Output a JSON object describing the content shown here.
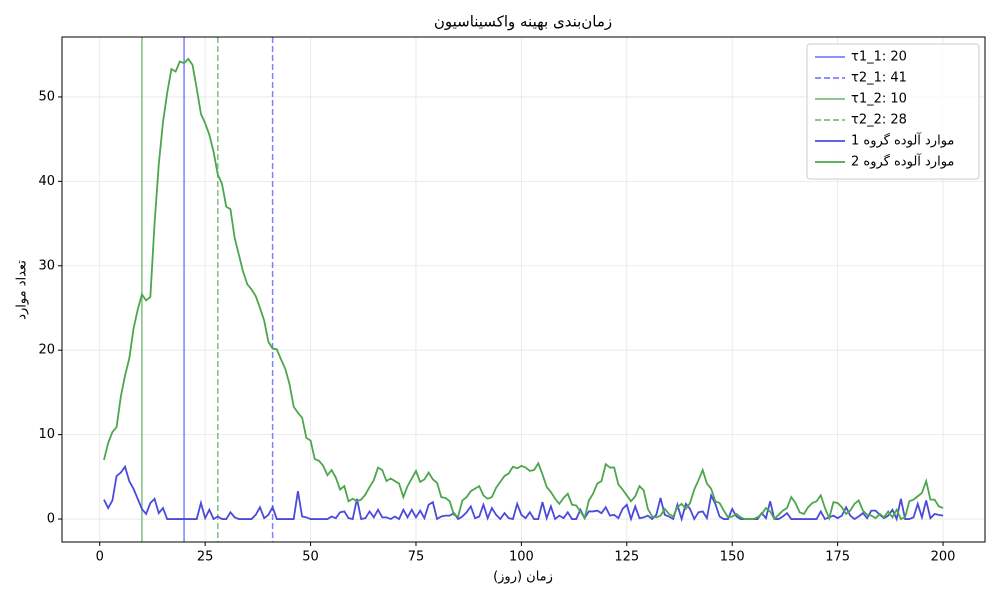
{
  "chart_data": {
    "type": "line",
    "title": "زمان‌بندی بهینه واکسیناسیون",
    "x_label": "زمان (روز)",
    "y_label": "تعداد موارد",
    "xlim": [
      -8.95,
      209.95
    ],
    "ylim": [
      -2.72,
      57.1
    ],
    "xticks": [
      0,
      25,
      50,
      75,
      100,
      125,
      150,
      175,
      200
    ],
    "yticks": [
      0,
      10,
      20,
      30,
      40,
      50
    ],
    "grid": true,
    "legend": "upper right",
    "vlines": [
      {
        "name": "τ1_1: 20",
        "value": 20,
        "color": "#7f7fff",
        "dashed": false
      },
      {
        "name": "τ2_1: 41",
        "value": 41,
        "color": "#7f7fff",
        "dashed": true
      },
      {
        "name": "τ1_2: 10",
        "value": 10,
        "color": "#7fbf7f",
        "dashed": false
      },
      {
        "name": "τ2_2: 28",
        "value": 28,
        "color": "#7fbf7f",
        "dashed": true
      }
    ],
    "x": [
      1,
      2,
      3,
      4,
      5,
      6,
      7,
      8,
      9,
      10,
      11,
      12,
      13,
      14,
      15,
      16,
      17,
      18,
      19,
      20,
      21,
      22,
      23,
      24,
      25,
      26,
      27,
      28,
      29,
      30,
      31,
      32,
      33,
      34,
      35,
      36,
      37,
      38,
      39,
      40,
      41,
      42,
      43,
      44,
      45,
      46,
      47,
      48,
      49,
      50,
      51,
      52,
      53,
      54,
      55,
      56,
      57,
      58,
      59,
      60,
      61,
      62,
      63,
      64,
      65,
      66,
      67,
      68,
      69,
      70,
      71,
      72,
      73,
      74,
      75,
      76,
      77,
      78,
      79,
      80,
      81,
      82,
      83,
      84,
      85,
      86,
      87,
      88,
      89,
      90,
      91,
      92,
      93,
      94,
      95,
      96,
      97,
      98,
      99,
      100,
      101,
      102,
      103,
      104,
      105,
      106,
      107,
      108,
      109,
      110,
      111,
      112,
      113,
      114,
      115,
      116,
      117,
      118,
      119,
      120,
      121,
      122,
      123,
      124,
      125,
      126,
      127,
      128,
      129,
      130,
      131,
      132,
      133,
      134,
      135,
      136,
      137,
      138,
      139,
      140,
      141,
      142,
      143,
      144,
      145,
      146,
      147,
      148,
      149,
      150,
      151,
      152,
      153,
      154,
      155,
      156,
      157,
      158,
      159,
      160,
      161,
      162,
      163,
      164,
      165,
      166,
      167,
      168,
      169,
      170,
      171,
      172,
      173,
      174,
      175,
      176,
      177,
      178,
      179,
      180,
      181,
      182,
      183,
      184,
      185,
      186,
      187,
      188,
      189,
      190,
      191,
      192,
      193,
      194,
      195,
      196,
      197,
      198,
      199,
      200
    ],
    "series": [
      {
        "name": "موارد آلوده گروه 1",
        "color": "#4b4bdb",
        "values": [
          2.3,
          1.3,
          2.2,
          5.1,
          5.5,
          6.2,
          4.5,
          3.6,
          2.4,
          1.2,
          0.6,
          1.9,
          2.4,
          0.7,
          1.3,
          0,
          0,
          0,
          0,
          0,
          0,
          0,
          0,
          1.9,
          0.1,
          1.1,
          0,
          0.3,
          0,
          0,
          0.8,
          0.2,
          0,
          0,
          0,
          0,
          0.5,
          1.4,
          0.1,
          0.5,
          1.4,
          0,
          0,
          0,
          0,
          0,
          3.3,
          0.3,
          0.2,
          0,
          0,
          0,
          0,
          0,
          0.3,
          0.1,
          0.8,
          0.9,
          0.1,
          0,
          2.4,
          0,
          0.1,
          0.9,
          0.2,
          1.1,
          0.2,
          0.2,
          0,
          0.3,
          0,
          1.1,
          0.2,
          1.1,
          0.2,
          1.0,
          0.1,
          1.7,
          2.0,
          0,
          0.3,
          0.4,
          0.4,
          0.7,
          0,
          0.3,
          0.8,
          1.5,
          0.1,
          0.3,
          1.7,
          0.1,
          1.3,
          0.5,
          0,
          0.7,
          0.1,
          0,
          1.8,
          0.5,
          0.1,
          0.8,
          0,
          0,
          2.0,
          0.1,
          1.5,
          0,
          0.4,
          0.1,
          0.8,
          0,
          0,
          1.1,
          0.1,
          0.9,
          0.9,
          1.0,
          0.7,
          1.4,
          0.4,
          0.5,
          0.1,
          1.2,
          1.7,
          0,
          1.5,
          0.1,
          0.2,
          0.4,
          0,
          0.5,
          2.5,
          0.5,
          0.3,
          0,
          1.7,
          0,
          1.8,
          1.2,
          0,
          0.8,
          0.9,
          0.1,
          2.8,
          1.8,
          0.3,
          0,
          0,
          1.2,
          0.3,
          0,
          0,
          0,
          0,
          0,
          0.7,
          0.1,
          2.1,
          0,
          0,
          0.3,
          0.7,
          0,
          0,
          0,
          0,
          0,
          0,
          0,
          0.9,
          0,
          0.2,
          0.4,
          0.1,
          0.4,
          1.4,
          0.4,
          0,
          0.3,
          0.7,
          0.1,
          1.0,
          1.0,
          0.5,
          0.1,
          0.4,
          1.1,
          0,
          2.4,
          0,
          0,
          0.2,
          1.8,
          0.2,
          2.2,
          0.1,
          0.6,
          0.5,
          0.4
        ]
      },
      {
        "name": "موارد آلوده گروه 2",
        "color": "#4ca64c",
        "values": [
          7,
          9,
          10.3,
          10.9,
          14.5,
          17,
          19,
          22.5,
          24.8,
          26.6,
          25.9,
          26.3,
          35,
          42,
          47,
          50.5,
          53.3,
          53,
          54.2,
          54,
          54.5,
          53.8,
          51,
          48,
          46.9,
          45.5,
          43.5,
          40.8,
          39.7,
          37,
          36.7,
          33.3,
          31.3,
          29.3,
          27.8,
          27.2,
          26.4,
          25,
          23.5,
          21,
          20.2,
          20.1,
          18.9,
          17.8,
          16,
          13.3,
          12.6,
          12,
          9.6,
          9.3,
          7.1,
          6.9,
          6.3,
          5.2,
          5.8,
          4.9,
          3.5,
          3.9,
          2.1,
          2.4,
          2.1,
          2.3,
          2.9,
          3.8,
          4.6,
          6.1,
          5.8,
          4.5,
          4.8,
          4.5,
          4.2,
          2.6,
          3.9,
          4.8,
          5.7,
          4.4,
          4.7,
          5.5,
          4.7,
          4.3,
          2.6,
          2.5,
          2.1,
          0.5,
          0.3,
          2.2,
          2.6,
          3.3,
          3.6,
          3.9,
          2.8,
          2.4,
          2.6,
          3.7,
          4.4,
          5.1,
          5.4,
          6.2,
          6.0,
          6.3,
          6.1,
          5.7,
          5.8,
          6.6,
          5.3,
          3.8,
          3.2,
          2.4,
          1.8,
          2.5,
          3.0,
          1.7,
          1.6,
          0.9,
          0.1,
          2.2,
          3.0,
          4.2,
          4.5,
          6.5,
          6.1,
          6.1,
          4.1,
          3.5,
          2.8,
          2.1,
          2.7,
          3.9,
          3.4,
          1.2,
          0.3,
          0.2,
          0.4,
          1.2,
          0.6,
          0.3,
          1.4,
          1.8,
          1.2,
          1.9,
          3.5,
          4.6,
          5.8,
          4.2,
          3.6,
          2.1,
          1.9,
          1.0,
          0.2,
          0.3,
          0.6,
          0.2,
          0,
          0,
          0,
          0.2,
          0.6,
          1.3,
          0.9,
          0,
          0.5,
          1.0,
          1.3,
          2.6,
          1.9,
          0.8,
          0.6,
          1.4,
          1.9,
          2.1,
          2.8,
          1.3,
          0.1,
          2.0,
          1.9,
          1.4,
          0.6,
          1.0,
          1.8,
          2.2,
          1.0,
          0.5,
          0.4,
          0.1,
          0.6,
          0.2,
          0.9,
          0.2,
          1.1,
          0,
          0.2,
          2.1,
          2.3,
          2.7,
          3.1,
          4.5,
          2.3,
          2.3,
          1.5,
          1.3
        ]
      }
    ]
  }
}
